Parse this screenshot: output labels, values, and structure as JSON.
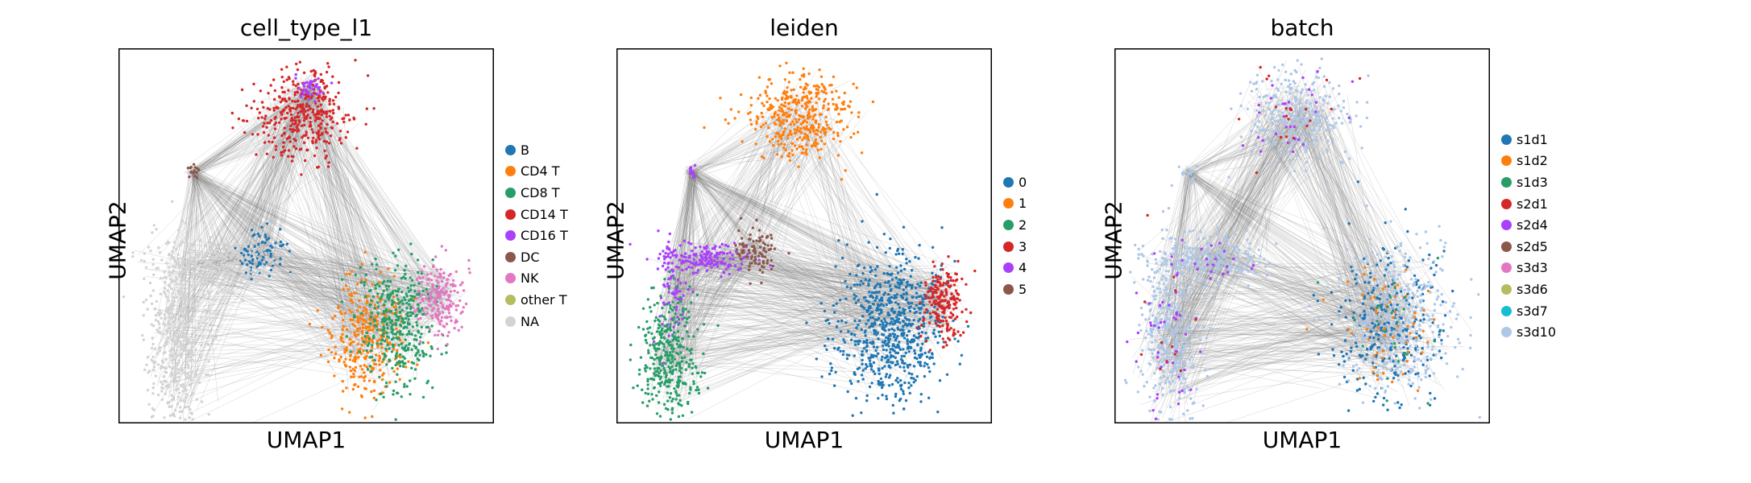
{
  "chart_data": [
    {
      "type": "scatter",
      "title": "cell_type_l1",
      "xlabel": "UMAP1",
      "ylabel": "UMAP2",
      "edges_color": "#808080",
      "legend_placement": "right",
      "legend": [
        {
          "label": "B",
          "color": "#1f77b4"
        },
        {
          "label": "CD4 T",
          "color": "#ff7f0e"
        },
        {
          "label": "CD8 T",
          "color": "#279e68"
        },
        {
          "label": "CD14 T",
          "color": "#d62728"
        },
        {
          "label": "CD16 T",
          "color": "#aa40fc"
        },
        {
          "label": "DC",
          "color": "#8c564b"
        },
        {
          "label": "NK",
          "color": "#e377c2"
        },
        {
          "label": "other T",
          "color": "#b5bd61"
        },
        {
          "label": "NA",
          "color": "#d3d3d3"
        }
      ],
      "clusters": [
        {
          "label": "CD14 T",
          "color": "#d62728",
          "center": [
            0.49,
            0.82
          ],
          "spread": [
            0.07,
            0.06
          ],
          "n": 380
        },
        {
          "label": "CD16 T",
          "color": "#aa40fc",
          "center": [
            0.51,
            0.89
          ],
          "spread": [
            0.02,
            0.02
          ],
          "n": 40
        },
        {
          "label": "DC",
          "color": "#8c564b",
          "center": [
            0.2,
            0.67
          ],
          "spread": [
            0.01,
            0.01
          ],
          "n": 15
        },
        {
          "label": "B",
          "color": "#1f77b4",
          "center": [
            0.38,
            0.46
          ],
          "spread": [
            0.03,
            0.03
          ],
          "n": 90
        },
        {
          "label": "NA",
          "color": "#d3d3d3",
          "center": [
            0.25,
            0.43
          ],
          "spread": [
            0.09,
            0.03
          ],
          "n": 260
        },
        {
          "label": "NA",
          "color": "#d3d3d3",
          "center": [
            0.15,
            0.2
          ],
          "spread": [
            0.04,
            0.13
          ],
          "n": 420
        },
        {
          "label": "CD4 T",
          "color": "#ff7f0e",
          "center": [
            0.66,
            0.23
          ],
          "spread": [
            0.05,
            0.08
          ],
          "n": 330
        },
        {
          "label": "CD8 T",
          "color": "#279e68",
          "center": [
            0.74,
            0.27
          ],
          "spread": [
            0.05,
            0.08
          ],
          "n": 370
        },
        {
          "label": "NK",
          "color": "#e377c2",
          "center": [
            0.86,
            0.33
          ],
          "spread": [
            0.03,
            0.05
          ],
          "n": 190
        }
      ]
    },
    {
      "type": "scatter",
      "title": "leiden",
      "xlabel": "UMAP1",
      "ylabel": "UMAP2",
      "edges_color": "#808080",
      "legend_placement": "right",
      "legend": [
        {
          "label": "0",
          "color": "#1f77b4"
        },
        {
          "label": "1",
          "color": "#ff7f0e"
        },
        {
          "label": "2",
          "color": "#279e68"
        },
        {
          "label": "3",
          "color": "#d62728"
        },
        {
          "label": "4",
          "color": "#aa40fc"
        },
        {
          "label": "5",
          "color": "#8c564b"
        }
      ],
      "clusters": [
        {
          "label": "1",
          "color": "#ff7f0e",
          "center": [
            0.49,
            0.82
          ],
          "spread": [
            0.07,
            0.06
          ],
          "n": 400
        },
        {
          "label": "4",
          "color": "#aa40fc",
          "center": [
            0.2,
            0.67
          ],
          "spread": [
            0.01,
            0.01
          ],
          "n": 15
        },
        {
          "label": "4",
          "color": "#aa40fc",
          "center": [
            0.24,
            0.44
          ],
          "spread": [
            0.06,
            0.02
          ],
          "n": 160
        },
        {
          "label": "4",
          "color": "#aa40fc",
          "center": [
            0.15,
            0.35
          ],
          "spread": [
            0.02,
            0.07
          ],
          "n": 90
        },
        {
          "label": "5",
          "color": "#8c564b",
          "center": [
            0.37,
            0.46
          ],
          "spread": [
            0.03,
            0.03
          ],
          "n": 90
        },
        {
          "label": "2",
          "color": "#279e68",
          "center": [
            0.14,
            0.17
          ],
          "spread": [
            0.04,
            0.08
          ],
          "n": 360
        },
        {
          "label": "0",
          "color": "#1f77b4",
          "center": [
            0.73,
            0.25
          ],
          "spread": [
            0.07,
            0.1
          ],
          "n": 720
        },
        {
          "label": "3",
          "color": "#d62728",
          "center": [
            0.87,
            0.32
          ],
          "spread": [
            0.03,
            0.05
          ],
          "n": 200
        }
      ]
    },
    {
      "type": "scatter",
      "title": "batch",
      "xlabel": "UMAP1",
      "ylabel": "UMAP2",
      "edges_color": "#808080",
      "legend_placement": "right",
      "legend": [
        {
          "label": "s1d1",
          "color": "#1f77b4"
        },
        {
          "label": "s1d2",
          "color": "#ff7f0e"
        },
        {
          "label": "s1d3",
          "color": "#279e68"
        },
        {
          "label": "s2d1",
          "color": "#d62728"
        },
        {
          "label": "s2d4",
          "color": "#aa40fc"
        },
        {
          "label": "s2d5",
          "color": "#8c564b"
        },
        {
          "label": "s3d3",
          "color": "#e377c2"
        },
        {
          "label": "s3d6",
          "color": "#b5bd61"
        },
        {
          "label": "s3d7",
          "color": "#17becf"
        },
        {
          "label": "s3d10",
          "color": "#aec7e8"
        }
      ],
      "clusters": [
        {
          "label": "s3d10",
          "color": "#aec7e8",
          "center": [
            0.49,
            0.82
          ],
          "spread": [
            0.07,
            0.06
          ],
          "n": 300
        },
        {
          "label": "s2d4",
          "color": "#aa40fc",
          "center": [
            0.49,
            0.82
          ],
          "spread": [
            0.07,
            0.06
          ],
          "n": 30
        },
        {
          "label": "s2d1",
          "color": "#d62728",
          "center": [
            0.49,
            0.82
          ],
          "spread": [
            0.07,
            0.06
          ],
          "n": 20
        },
        {
          "label": "s3d10",
          "color": "#aec7e8",
          "center": [
            0.2,
            0.67
          ],
          "spread": [
            0.01,
            0.01
          ],
          "n": 15
        },
        {
          "label": "s3d10",
          "color": "#aec7e8",
          "center": [
            0.25,
            0.44
          ],
          "spread": [
            0.08,
            0.03
          ],
          "n": 240
        },
        {
          "label": "s2d4",
          "color": "#aa40fc",
          "center": [
            0.25,
            0.44
          ],
          "spread": [
            0.08,
            0.03
          ],
          "n": 25
        },
        {
          "label": "s3d10",
          "color": "#aec7e8",
          "center": [
            0.15,
            0.22
          ],
          "spread": [
            0.04,
            0.12
          ],
          "n": 360
        },
        {
          "label": "s2d4",
          "color": "#aa40fc",
          "center": [
            0.14,
            0.2
          ],
          "spread": [
            0.04,
            0.12
          ],
          "n": 45
        },
        {
          "label": "s2d1",
          "color": "#d62728",
          "center": [
            0.14,
            0.2
          ],
          "spread": [
            0.04,
            0.12
          ],
          "n": 15
        },
        {
          "label": "s1d1",
          "color": "#1f77b4",
          "center": [
            0.73,
            0.26
          ],
          "spread": [
            0.07,
            0.1
          ],
          "n": 300
        },
        {
          "label": "s3d10",
          "color": "#aec7e8",
          "center": [
            0.76,
            0.27
          ],
          "spread": [
            0.08,
            0.1
          ],
          "n": 380
        },
        {
          "label": "s1d2",
          "color": "#ff7f0e",
          "center": [
            0.73,
            0.25
          ],
          "spread": [
            0.07,
            0.1
          ],
          "n": 60
        },
        {
          "label": "s1d3",
          "color": "#279e68",
          "center": [
            0.73,
            0.25
          ],
          "spread": [
            0.07,
            0.1
          ],
          "n": 25
        }
      ]
    }
  ]
}
